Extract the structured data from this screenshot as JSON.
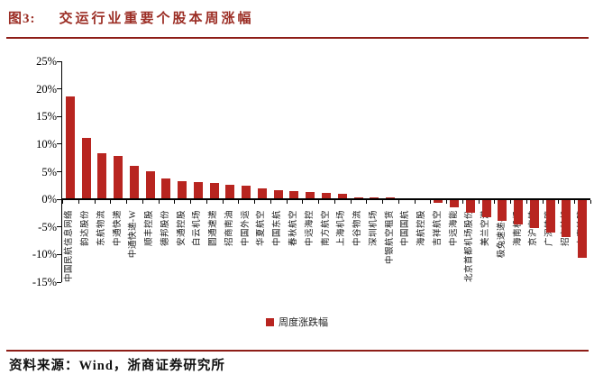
{
  "header": {
    "figure_label": "图3:",
    "title": "交运行业重要个股本周涨幅"
  },
  "chart_data": {
    "type": "bar",
    "title": "交运行业重要个股本周涨幅",
    "categories": [
      "中国民航信息网络",
      "韵达股份",
      "东航物流",
      "中通快递",
      "中通快递-W",
      "顺丰控股",
      "德邦股份",
      "安通控股",
      "白云机场",
      "圆通速递",
      "招商南油",
      "中国外运",
      "华夏航空",
      "中国东航",
      "春秋航空",
      "中远海控",
      "南方航空",
      "上海机场",
      "中谷物流",
      "深圳机场",
      "中银航空租赁",
      "中国国航",
      "海航控股",
      "吉祥航空",
      "中远海能",
      "北京首都机场股份",
      "美兰空港",
      "极兔速递-W",
      "海南机场",
      "京沪高铁",
      "广深铁路",
      "招商轮船",
      "大秦铁路"
    ],
    "values": [
      18.7,
      11.1,
      8.4,
      7.8,
      6.0,
      5.1,
      3.8,
      3.3,
      3.1,
      3.0,
      2.6,
      2.5,
      2.0,
      1.7,
      1.5,
      1.3,
      1.2,
      1.0,
      0.4,
      0.3,
      0.3,
      0.2,
      0.1,
      -0.4,
      -1.3,
      -2.2,
      -3.0,
      -3.8,
      -4.4,
      -5.0,
      -5.8,
      -6.6,
      -10.4
    ],
    "ylim": [
      -15,
      25
    ],
    "yticks": [
      "25%",
      "20%",
      "15%",
      "10%",
      "5%",
      "0%",
      "-5%",
      "-10%",
      "-15%"
    ],
    "ytick_values": [
      25,
      20,
      15,
      10,
      5,
      0,
      -5,
      -10,
      -15
    ],
    "grid": false,
    "legend": {
      "label": "周度涨跌幅",
      "position": "bottom"
    },
    "bar_color": "#b82520"
  },
  "footer": {
    "source": "资料来源：Wind，浙商证券研究所"
  },
  "colors": {
    "title_red": "#9b2d24",
    "divider_red": "#8e1d17",
    "bar_red": "#b82520"
  }
}
